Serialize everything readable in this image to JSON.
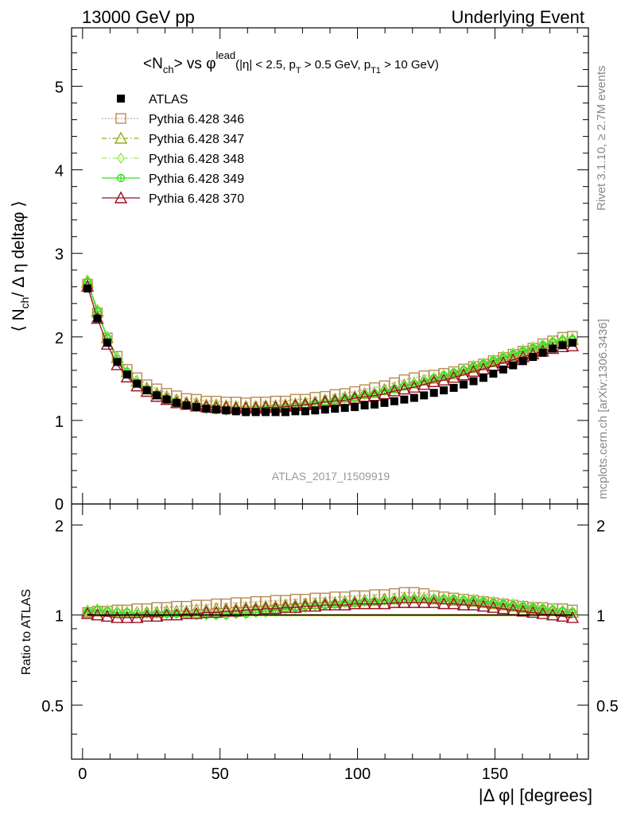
{
  "header": {
    "left": "13000 GeV pp",
    "right": "Underlying Event"
  },
  "side_labels": {
    "rivet": "Rivet 3.1.10, ≥ 2.7M events",
    "mcplots": "mcplots.cern.ch [arXiv:1306.3436]"
  },
  "watermark": "ATLAS_2017_I1509919",
  "chart_data": {
    "type": "line",
    "title": {
      "main": "<N",
      "main_sub": "ch",
      "mid": "> vs φ",
      "sup": "lead",
      "cuts": "(|η| < 2.5, p",
      "cuts_sub1": "T",
      "cuts_mid": " > 0.5 GeV, p",
      "cuts_sub2": "T1",
      "cuts_end": " > 10 GeV)"
    },
    "xlabel": "|Δ φ| [degrees]",
    "ylabel": {
      "pre": "⟨ N",
      "sub": "ch",
      "post": "/ Δ η deltaφ ⟩"
    },
    "ratio_ylabel": "Ratio to ATLAS",
    "xlim": [
      -4,
      184
    ],
    "ylim": [
      0,
      5.7
    ],
    "ratio_ylim": [
      0.33,
      2.35
    ],
    "x_ticks": [
      "0",
      "50",
      "100",
      "150"
    ],
    "y_ticks": [
      "1",
      "2",
      "3",
      "4",
      "5"
    ],
    "y_tick_zero": "0",
    "ratio_ticks": [
      "0.5",
      "1",
      "2"
    ],
    "x": [
      1.8,
      5.4,
      9,
      12.6,
      16.2,
      19.8,
      23.4,
      27,
      30.6,
      34.2,
      37.8,
      41.4,
      45,
      48.6,
      52.2,
      55.8,
      59.4,
      63,
      66.6,
      70.2,
      73.8,
      77.4,
      81,
      84.6,
      88.2,
      91.8,
      95.4,
      99,
      102.6,
      106.2,
      109.8,
      113.4,
      117,
      120.6,
      124.2,
      127.8,
      131.4,
      135,
      138.6,
      142.2,
      145.8,
      149.4,
      153,
      156.6,
      160.2,
      163.8,
      167.4,
      171,
      174.6,
      178.2
    ],
    "series": [
      {
        "name": "ATLAS",
        "color": "#000000",
        "marker": "square-filled",
        "line": "none",
        "values": [
          2.58,
          2.22,
          1.93,
          1.7,
          1.55,
          1.44,
          1.36,
          1.3,
          1.25,
          1.21,
          1.18,
          1.16,
          1.14,
          1.13,
          1.12,
          1.11,
          1.1,
          1.1,
          1.1,
          1.1,
          1.1,
          1.11,
          1.11,
          1.12,
          1.13,
          1.14,
          1.15,
          1.16,
          1.18,
          1.19,
          1.21,
          1.23,
          1.25,
          1.27,
          1.3,
          1.33,
          1.36,
          1.39,
          1.43,
          1.47,
          1.51,
          1.56,
          1.61,
          1.66,
          1.71,
          1.76,
          1.81,
          1.86,
          1.9,
          1.93
        ]
      },
      {
        "name": "Pythia 6.428 346",
        "color": "#b88d55",
        "marker": "square-open",
        "line": "dotted",
        "ratios": [
          1.02,
          1.03,
          1.03,
          1.04,
          1.04,
          1.05,
          1.05,
          1.06,
          1.06,
          1.07,
          1.07,
          1.08,
          1.08,
          1.09,
          1.09,
          1.1,
          1.1,
          1.11,
          1.11,
          1.12,
          1.12,
          1.13,
          1.13,
          1.14,
          1.14,
          1.15,
          1.15,
          1.16,
          1.16,
          1.17,
          1.17,
          1.18,
          1.19,
          1.19,
          1.18,
          1.16,
          1.15,
          1.14,
          1.13,
          1.12,
          1.11,
          1.1,
          1.09,
          1.08,
          1.07,
          1.06,
          1.06,
          1.05,
          1.05,
          1.04
        ]
      },
      {
        "name": "Pythia 6.428 347",
        "color": "#9aaa1a",
        "marker": "triangle-open",
        "line": "dashdot",
        "ratios": [
          1.03,
          1.04,
          1.03,
          1.03,
          1.02,
          1.02,
          1.02,
          1.02,
          1.03,
          1.03,
          1.03,
          1.04,
          1.04,
          1.05,
          1.05,
          1.05,
          1.06,
          1.06,
          1.07,
          1.07,
          1.08,
          1.08,
          1.09,
          1.09,
          1.1,
          1.1,
          1.11,
          1.11,
          1.12,
          1.12,
          1.13,
          1.13,
          1.14,
          1.14,
          1.14,
          1.13,
          1.13,
          1.12,
          1.12,
          1.11,
          1.1,
          1.09,
          1.08,
          1.07,
          1.06,
          1.05,
          1.04,
          1.04,
          1.03,
          1.02
        ]
      },
      {
        "name": "Pythia 6.428 348",
        "color": "#9ce65a",
        "marker": "diamond-open",
        "line": "dashdot",
        "ratios": [
          1.04,
          1.05,
          1.04,
          1.03,
          1.02,
          1.02,
          1.01,
          1.01,
          1.01,
          1.01,
          1.01,
          1.0,
          1.0,
          1.0,
          1.0,
          1.01,
          1.01,
          1.02,
          1.02,
          1.03,
          1.04,
          1.05,
          1.06,
          1.07,
          1.08,
          1.09,
          1.1,
          1.1,
          1.11,
          1.12,
          1.12,
          1.13,
          1.13,
          1.14,
          1.14,
          1.14,
          1.14,
          1.14,
          1.13,
          1.13,
          1.12,
          1.11,
          1.1,
          1.09,
          1.08,
          1.07,
          1.06,
          1.05,
          1.04,
          1.03
        ]
      },
      {
        "name": "Pythia 6.428 349",
        "color": "#33e01e",
        "marker": "circle-cross",
        "line": "solid",
        "ratios": [
          1.03,
          1.04,
          1.03,
          1.02,
          1.02,
          1.01,
          1.01,
          1.01,
          1.01,
          1.01,
          1.0,
          1.0,
          1.0,
          1.0,
          1.0,
          1.01,
          1.01,
          1.02,
          1.03,
          1.04,
          1.05,
          1.06,
          1.07,
          1.08,
          1.08,
          1.09,
          1.1,
          1.1,
          1.11,
          1.11,
          1.12,
          1.12,
          1.13,
          1.13,
          1.13,
          1.13,
          1.13,
          1.13,
          1.12,
          1.12,
          1.11,
          1.1,
          1.09,
          1.08,
          1.07,
          1.06,
          1.05,
          1.04,
          1.03,
          1.02
        ]
      },
      {
        "name": "Pythia 6.428 370",
        "color": "#9a1226",
        "marker": "triangle-open",
        "line": "solid",
        "ratios": [
          1.01,
          1.0,
          0.99,
          0.98,
          0.98,
          0.98,
          0.99,
          0.99,
          1.0,
          1.0,
          1.01,
          1.01,
          1.02,
          1.02,
          1.03,
          1.03,
          1.04,
          1.04,
          1.05,
          1.05,
          1.06,
          1.06,
          1.07,
          1.07,
          1.08,
          1.08,
          1.08,
          1.09,
          1.09,
          1.09,
          1.09,
          1.1,
          1.1,
          1.1,
          1.1,
          1.1,
          1.09,
          1.09,
          1.08,
          1.08,
          1.07,
          1.06,
          1.05,
          1.04,
          1.03,
          1.02,
          1.01,
          1.0,
          0.99,
          0.98
        ]
      }
    ],
    "legend_position": "top-left",
    "grid": false,
    "ratio_reference": 1
  }
}
